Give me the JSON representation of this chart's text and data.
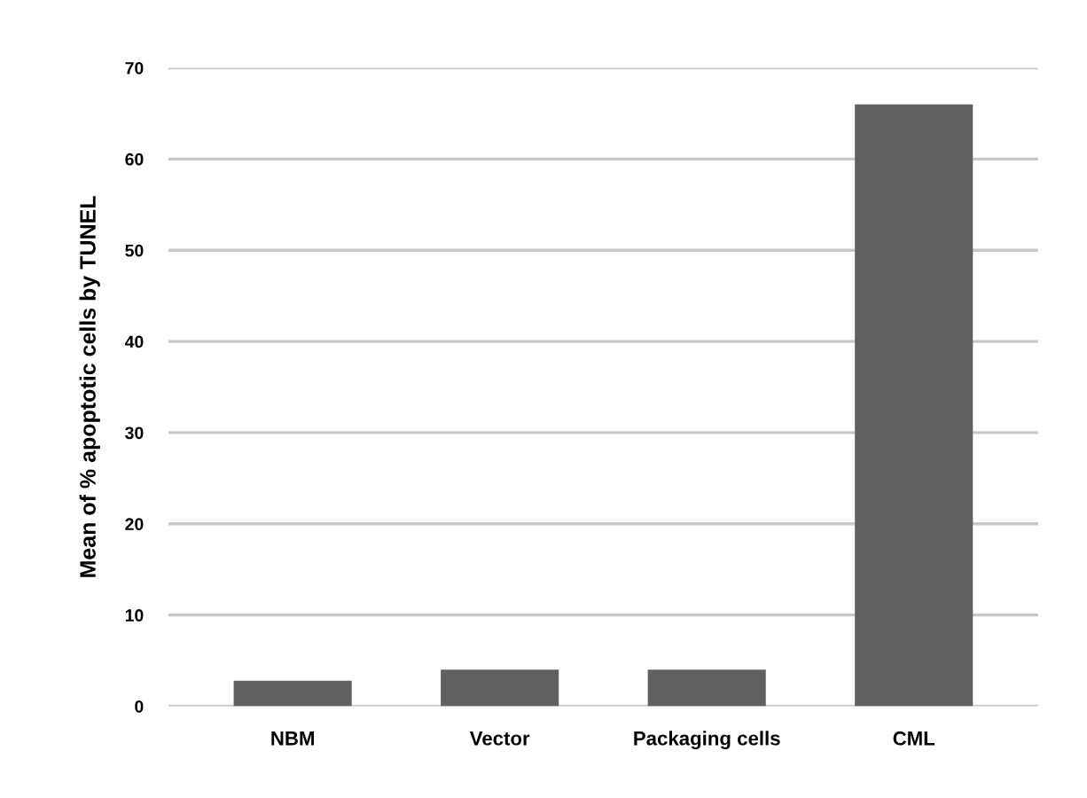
{
  "chart_data": {
    "type": "bar",
    "ylabel": "Mean of % apoptotic cells by TUNEL",
    "categories": [
      "NBM",
      "Vector",
      "Packaging cells",
      "CML"
    ],
    "values": [
      2.8,
      4,
      4,
      66
    ],
    "color": "#606060",
    "ylim": [
      0,
      70
    ],
    "yticks": [
      0,
      10,
      20,
      30,
      40,
      50,
      60,
      70
    ],
    "grid": "y"
  }
}
